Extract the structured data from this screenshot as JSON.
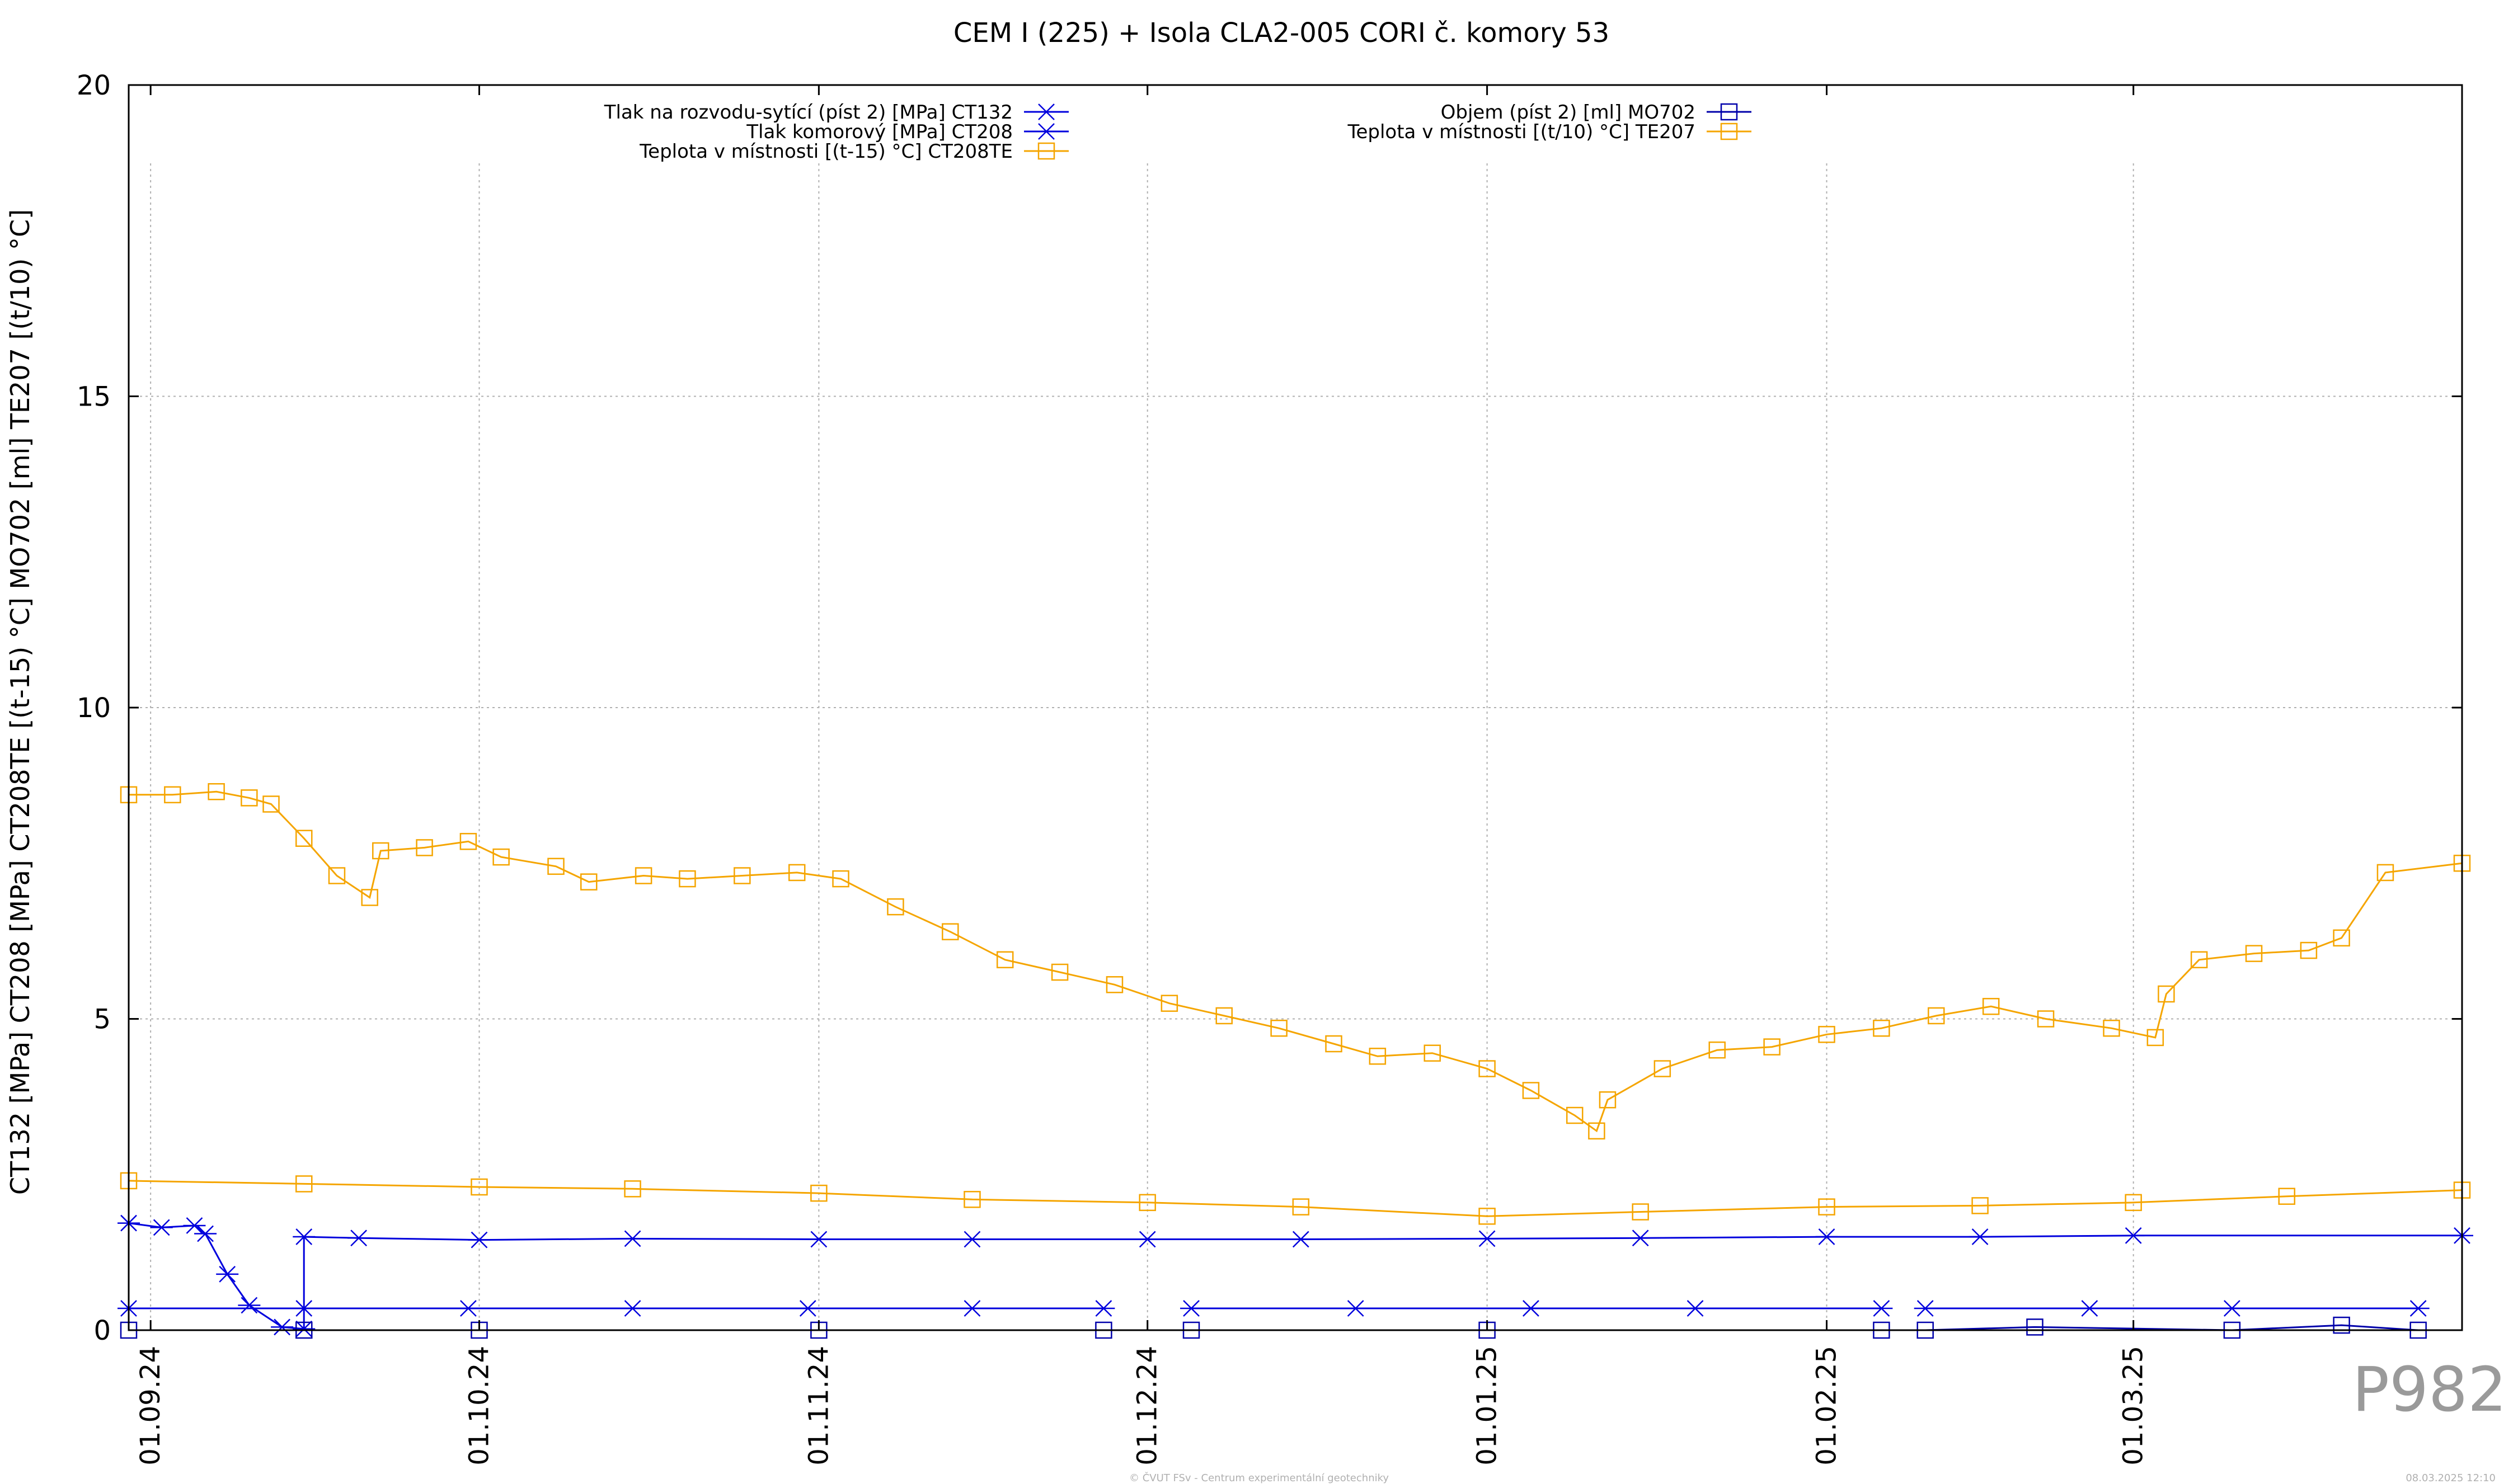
{
  "chart_data": {
    "type": "line",
    "title": "CEM I (225) + Isola CLA2-005 CORI č. komory 53",
    "ylabel": "CT132 [MPa] CT208 [MPa] CT208TE [(t-15) °C] MO702 [ml] TE207 [(t/10) °C]",
    "xlabel": "",
    "x_range": [
      "2024-08-30",
      "2025-03-31"
    ],
    "ylim": [
      0,
      20
    ],
    "y_ticks": [
      0,
      5,
      10,
      15,
      20
    ],
    "x_ticks": [
      {
        "date": "2024-09-01",
        "label": "01.09.24"
      },
      {
        "date": "2024-10-01",
        "label": "01.10.24"
      },
      {
        "date": "2024-11-01",
        "label": "01.11.24"
      },
      {
        "date": "2024-12-01",
        "label": "01.12.24"
      },
      {
        "date": "2025-01-01",
        "label": "01.01.25"
      },
      {
        "date": "2025-02-01",
        "label": "01.02.25"
      },
      {
        "date": "2025-03-01",
        "label": "01.03.25"
      }
    ],
    "grid": true,
    "legend_position": "top",
    "series": [
      {
        "name": "Tlak na rozvodu-sytící (píst 2) [MPa] CT132",
        "color": "#0000dd",
        "marker": "asterisk",
        "points": [
          [
            "2024-08-30",
            0.35
          ],
          [
            "2024-09-15",
            0.35
          ],
          [
            "2024-09-30",
            0.35
          ],
          [
            "2024-10-15",
            0.35
          ],
          [
            "2024-10-31",
            0.35
          ],
          [
            "2024-11-15",
            0.35
          ],
          [
            "2024-11-27",
            0.35
          ]
        ],
        "points_b": [
          [
            "2024-12-05",
            0.35
          ],
          [
            "2024-12-20",
            0.35
          ],
          [
            "2025-01-05",
            0.35
          ],
          [
            "2025-01-20",
            0.35
          ],
          [
            "2025-02-06",
            0.35
          ]
        ],
        "points_c": [
          [
            "2025-02-10",
            0.35
          ],
          [
            "2025-02-25",
            0.35
          ],
          [
            "2025-03-10",
            0.35
          ],
          [
            "2025-03-27",
            0.35
          ]
        ]
      },
      {
        "name": "Tlak komorový [MPa] CT208",
        "color": "#0000dd",
        "marker": "asterisk",
        "points": [
          [
            "2024-08-30",
            1.72
          ],
          [
            "2024-09-02",
            1.65
          ],
          [
            "2024-09-05",
            1.68
          ],
          [
            "2024-09-06",
            1.55
          ],
          [
            "2024-09-08",
            0.9
          ],
          [
            "2024-09-10",
            0.4
          ],
          [
            "2024-09-13",
            0.05
          ],
          [
            "2024-09-15",
            0.02
          ],
          [
            "2024-09-15",
            1.5
          ],
          [
            "2024-09-20",
            1.48
          ],
          [
            "2024-10-01",
            1.45
          ],
          [
            "2024-10-15",
            1.47
          ],
          [
            "2024-11-01",
            1.46
          ],
          [
            "2024-11-15",
            1.46
          ],
          [
            "2024-12-01",
            1.46
          ],
          [
            "2024-12-15",
            1.46
          ],
          [
            "2025-01-01",
            1.47
          ],
          [
            "2025-01-15",
            1.48
          ],
          [
            "2025-02-01",
            1.5
          ],
          [
            "2025-02-15",
            1.5
          ],
          [
            "2025-03-01",
            1.52
          ],
          [
            "2025-03-31",
            1.52
          ]
        ]
      },
      {
        "name": "Teplota v místnosti [(t-15) °C] CT208TE",
        "color": "#f5a500",
        "marker": "square",
        "points": [
          [
            "2024-08-30",
            8.6
          ],
          [
            "2024-09-03",
            8.6
          ],
          [
            "2024-09-07",
            8.65
          ],
          [
            "2024-09-10",
            8.55
          ],
          [
            "2024-09-12",
            8.45
          ],
          [
            "2024-09-15",
            7.9
          ],
          [
            "2024-09-18",
            7.3
          ],
          [
            "2024-09-21",
            6.95
          ],
          [
            "2024-09-22",
            7.7
          ],
          [
            "2024-09-26",
            7.75
          ],
          [
            "2024-09-30",
            7.85
          ],
          [
            "2024-10-03",
            7.6
          ],
          [
            "2024-10-08",
            7.45
          ],
          [
            "2024-10-11",
            7.2
          ],
          [
            "2024-10-16",
            7.3
          ],
          [
            "2024-10-20",
            7.25
          ],
          [
            "2024-10-25",
            7.3
          ],
          [
            "2024-10-30",
            7.35
          ],
          [
            "2024-11-03",
            7.25
          ],
          [
            "2024-11-08",
            6.8
          ],
          [
            "2024-11-13",
            6.4
          ],
          [
            "2024-11-18",
            5.95
          ],
          [
            "2024-11-23",
            5.75
          ],
          [
            "2024-11-28",
            5.55
          ],
          [
            "2024-12-03",
            5.25
          ],
          [
            "2024-12-08",
            5.05
          ],
          [
            "2024-12-13",
            4.85
          ],
          [
            "2024-12-18",
            4.6
          ],
          [
            "2024-12-22",
            4.4
          ],
          [
            "2024-12-27",
            4.45
          ],
          [
            "2025-01-01",
            4.2
          ],
          [
            "2025-01-05",
            3.85
          ],
          [
            "2025-01-09",
            3.45
          ],
          [
            "2025-01-11",
            3.2
          ],
          [
            "2025-01-12",
            3.7
          ],
          [
            "2025-01-17",
            4.2
          ],
          [
            "2025-01-22",
            4.5
          ],
          [
            "2025-01-27",
            4.55
          ],
          [
            "2025-02-01",
            4.75
          ],
          [
            "2025-02-06",
            4.85
          ],
          [
            "2025-02-11",
            5.05
          ],
          [
            "2025-02-16",
            5.2
          ],
          [
            "2025-02-21",
            5.0
          ],
          [
            "2025-02-27",
            4.85
          ],
          [
            "2025-03-03",
            4.7
          ],
          [
            "2025-03-04",
            5.4
          ],
          [
            "2025-03-07",
            5.95
          ],
          [
            "2025-03-12",
            6.05
          ],
          [
            "2025-03-17",
            6.1
          ],
          [
            "2025-03-20",
            6.3
          ],
          [
            "2025-03-24",
            7.35
          ],
          [
            "2025-03-31",
            7.5
          ]
        ]
      },
      {
        "name": "Objem (píst 2) [ml] MO702",
        "color": "#0000aa",
        "marker": "square",
        "points": [
          [
            "2024-08-30",
            0.0
          ],
          [
            "2024-09-15",
            0.0
          ],
          [
            "2024-10-01",
            0.0
          ],
          [
            "2024-11-01",
            0.0
          ],
          [
            "2024-11-27",
            0.0
          ]
        ],
        "points_b": [
          [
            "2024-12-05",
            0.0
          ],
          [
            "2025-01-01",
            0.0
          ],
          [
            "2025-02-06",
            0.0
          ]
        ],
        "points_c": [
          [
            "2025-02-10",
            0.0
          ],
          [
            "2025-02-20",
            0.05
          ],
          [
            "2025-03-10",
            0.0
          ],
          [
            "2025-03-20",
            0.08
          ],
          [
            "2025-03-27",
            0.0
          ]
        ]
      },
      {
        "name": "Teplota v místnosti [(t/10) °C] TE207",
        "color": "#f5a500",
        "marker": "square",
        "points": [
          [
            "2024-08-30",
            2.4
          ],
          [
            "2024-09-15",
            2.35
          ],
          [
            "2024-10-01",
            2.3
          ],
          [
            "2024-10-15",
            2.27
          ],
          [
            "2024-11-01",
            2.2
          ],
          [
            "2024-11-15",
            2.1
          ],
          [
            "2024-12-01",
            2.05
          ],
          [
            "2024-12-15",
            1.98
          ],
          [
            "2025-01-01",
            1.83
          ],
          [
            "2025-01-15",
            1.9
          ],
          [
            "2025-02-01",
            1.98
          ],
          [
            "2025-02-15",
            2.0
          ],
          [
            "2025-03-01",
            2.05
          ],
          [
            "2025-03-15",
            2.15
          ],
          [
            "2025-03-31",
            2.25
          ]
        ]
      }
    ]
  },
  "watermark": "P982",
  "footer_center": "© ČVUT FSv - Centrum experimentální geotechniky",
  "footer_right": "08.03.2025 12:10"
}
